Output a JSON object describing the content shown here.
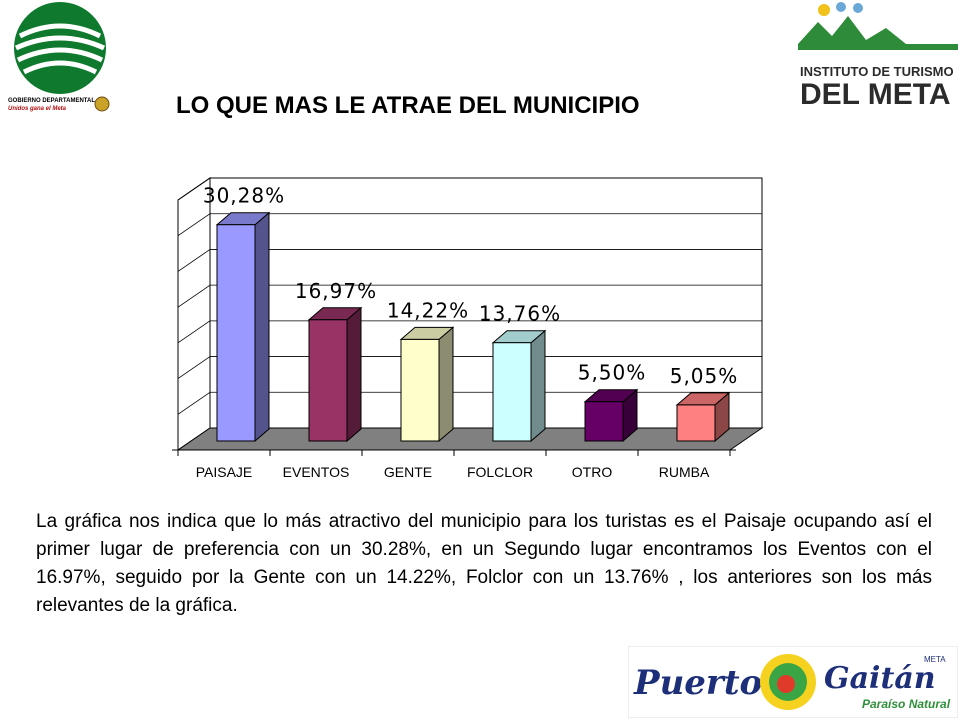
{
  "title": "LO QUE MAS LE ATRAE DEL MUNICIPIO",
  "logos": {
    "left_line1": "GOBIERNO DEPARTAMENTAL",
    "left_line2": "Unidos gana el Meta",
    "right_line1": "INSTITUTO DE TURISMO",
    "right_line2": "DEL META",
    "bottom_word1": "Puerto",
    "bottom_word2": "Gaitán",
    "bottom_tag": "Paraíso Natural",
    "bottom_small": "META"
  },
  "chart_data": {
    "type": "bar",
    "title": "",
    "xlabel": "",
    "ylabel": "",
    "categories": [
      "PAISAJE",
      "EVENTOS",
      "GENTE",
      "FOLCLOR",
      "OTRO",
      "RUMBA"
    ],
    "values": [
      30.28,
      16.97,
      14.22,
      13.76,
      5.5,
      5.05
    ],
    "data_labels": [
      "30,28%",
      "16,97%",
      "14,22%",
      "13,76%",
      "5,50%",
      "5,05%"
    ],
    "colors": [
      "#9999FF",
      "#993366",
      "#FFFFCC",
      "#CCFFFF",
      "#660066",
      "#FF8080"
    ],
    "ylim": [
      0,
      35
    ],
    "grid": true,
    "legend": "none"
  },
  "description": "La gráfica nos indica que lo más atractivo del municipio para los turistas es el Paisaje ocupando así el primer lugar de preferencia con un 30.28%, en un Segundo lugar encontramos los Eventos con el 16.97%, seguido por la Gente con un 14.22%, Folclor con un 13.76% , los anteriores son  los más relevantes de la gráfica."
}
